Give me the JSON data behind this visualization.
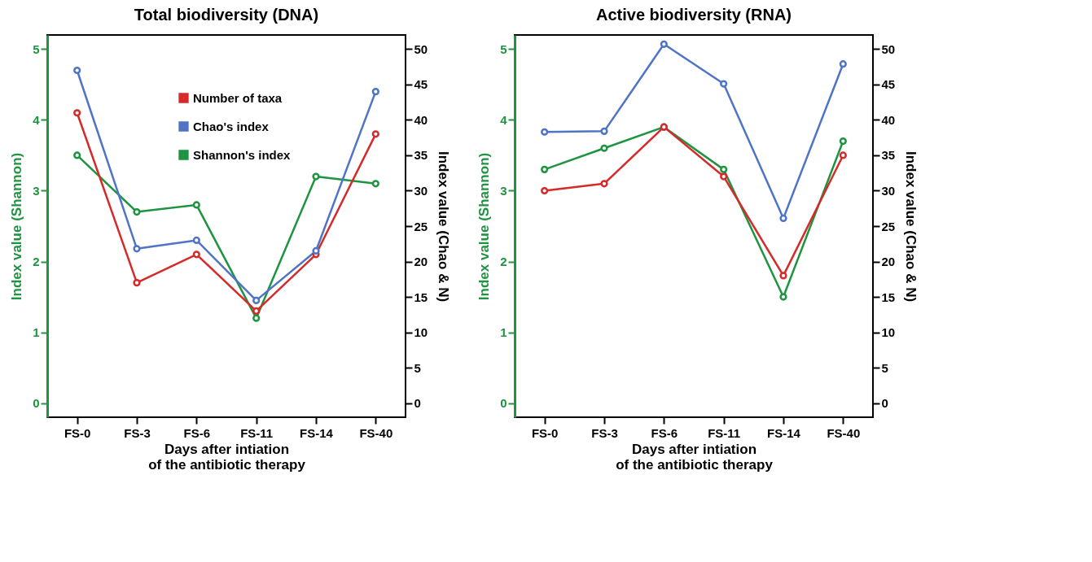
{
  "chart_data": [
    {
      "type": "line",
      "title": "Total biodiversity (DNA)",
      "xlabel": "Days after intiation\nof the antibiotic therapy",
      "ylabel": "Index value (Shannon)",
      "y2label": "Index value (Chao & N)",
      "categories": [
        "FS-0",
        "FS-3",
        "FS-6",
        "FS-11",
        "FS-14",
        "FS-40"
      ],
      "series": [
        {
          "name": "Number of taxa",
          "color": "#d62a2a",
          "axis": "y2",
          "values": [
            41,
            17,
            21,
            13,
            21,
            38
          ]
        },
        {
          "name": "Chao's index",
          "color": "#4f74c6",
          "axis": "y2",
          "values": [
            47,
            21.8,
            23,
            14.5,
            21.5,
            44
          ]
        },
        {
          "name": "Shannon's index",
          "color": "#1e9440",
          "values": [
            3.5,
            2.7,
            2.8,
            1.2,
            3.2,
            3.1
          ]
        }
      ],
      "ylim": [
        -0.2,
        5.2
      ],
      "yticks": [
        0,
        1,
        2,
        3,
        4,
        5
      ],
      "y2lim": [
        -2,
        52
      ],
      "y2ticks": [
        0,
        5,
        10,
        15,
        20,
        25,
        30,
        35,
        40,
        45,
        50
      ],
      "legend": "top",
      "marker": "circle",
      "line_style": "solid",
      "grid": false
    },
    {
      "type": "line",
      "title": "Active biodiversity (RNA)",
      "xlabel": "Days after intiation\nof the antibiotic therapy",
      "ylabel": "Index value (Shannon)",
      "y2label": "Index value (Chao & N)",
      "categories": [
        "FS-0",
        "FS-3",
        "FS-6",
        "FS-11",
        "FS-14",
        "FS-40"
      ],
      "series": [
        {
          "name": "Number of taxa",
          "color": "#d62a2a",
          "axis": "y2",
          "values": [
            30,
            31,
            39,
            32,
            18,
            35
          ]
        },
        {
          "name": "Chao's index",
          "color": "#4f74c6",
          "axis": "y2",
          "values": [
            38.3,
            38.4,
            50.7,
            45.1,
            26.1,
            47.9
          ]
        },
        {
          "name": "Shannon's index",
          "color": "#1e9440",
          "values": [
            3.3,
            3.6,
            3.9,
            3.3,
            1.5,
            3.7
          ]
        }
      ],
      "ylim": [
        -0.2,
        5.2
      ],
      "yticks": [
        0,
        1,
        2,
        3,
        4,
        5
      ],
      "y2lim": [
        -2,
        52
      ],
      "y2ticks": [
        0,
        5,
        10,
        15,
        20,
        25,
        30,
        35,
        40,
        45,
        50
      ],
      "legend": "bottom",
      "marker": "circle",
      "line_style": "solid",
      "grid": false
    }
  ]
}
